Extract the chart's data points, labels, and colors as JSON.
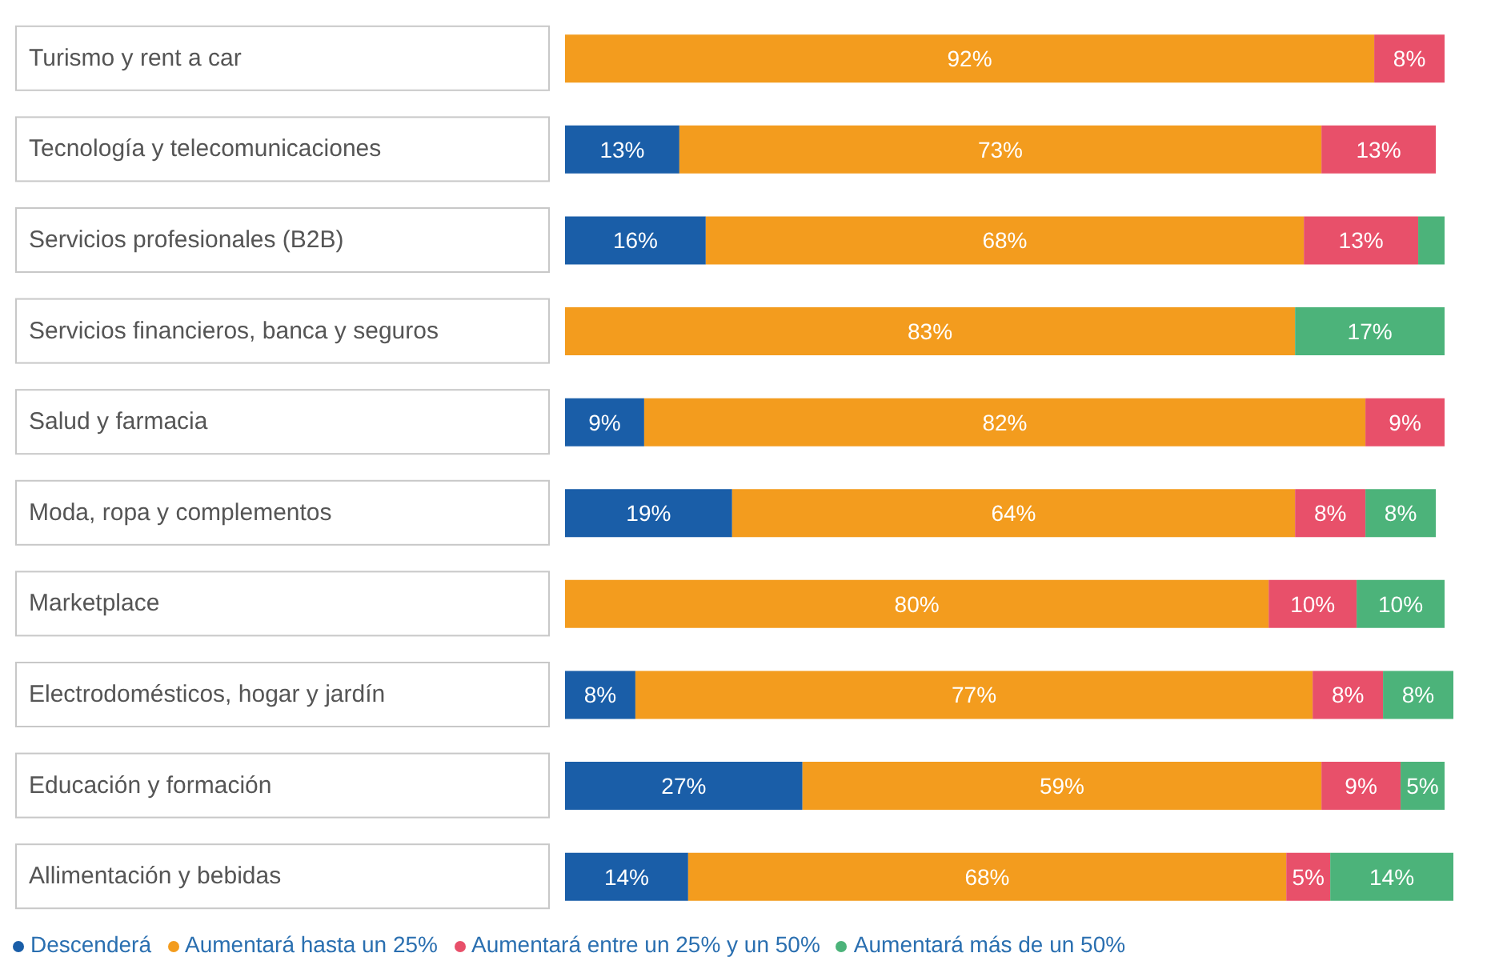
{
  "chart_data": {
    "type": "bar",
    "orientation": "horizontal",
    "stacked": true,
    "legend": "bottom",
    "categories": [
      "Turismo y rent a car",
      "Tecnología y telecomunicaciones",
      "Servicios profesionales (B2B)",
      "Servicios financieros, banca y seguros",
      "Salud y farmacia",
      "Moda, ropa y complementos",
      "Marketplace",
      "Electrodomésticos, hogar y jardín",
      "Educación y formación",
      "Allimentación y bebidas"
    ],
    "series": [
      {
        "name": "Descenderá",
        "color": "#1a5ea8",
        "values": [
          null,
          13,
          16,
          null,
          9,
          19,
          null,
          8,
          27,
          14
        ],
        "value_labels": [
          null,
          "13%",
          "16%",
          null,
          "9%",
          "19%",
          null,
          "8%",
          "27%",
          "14%"
        ]
      },
      {
        "name": "Aumentará hasta un 25%",
        "color": "#f39c1e",
        "values": [
          92,
          73,
          68,
          83,
          82,
          64,
          80,
          77,
          59,
          68
        ],
        "value_labels": [
          "92%",
          "73%",
          "68%",
          "83%",
          "82%",
          "64%",
          "80%",
          "77%",
          "59%",
          "68%"
        ]
      },
      {
        "name": "Aumentará entre un 25% y un 50%",
        "color": "#e8506a",
        "values": [
          8,
          13,
          13,
          null,
          9,
          8,
          10,
          8,
          9,
          5
        ],
        "value_labels": [
          "8%",
          "13%",
          "13%",
          null,
          "9%",
          "8%",
          "10%",
          "8%",
          "9%",
          "5%"
        ]
      },
      {
        "name": "Aumentará más de un 50%",
        "color": "#4cb37a",
        "values": [
          null,
          null,
          3,
          17,
          null,
          8,
          10,
          8,
          5,
          14
        ],
        "value_labels": [
          null,
          null,
          null,
          "17%",
          null,
          "8%",
          "10%",
          "8%",
          "5%",
          "14%"
        ]
      }
    ]
  }
}
